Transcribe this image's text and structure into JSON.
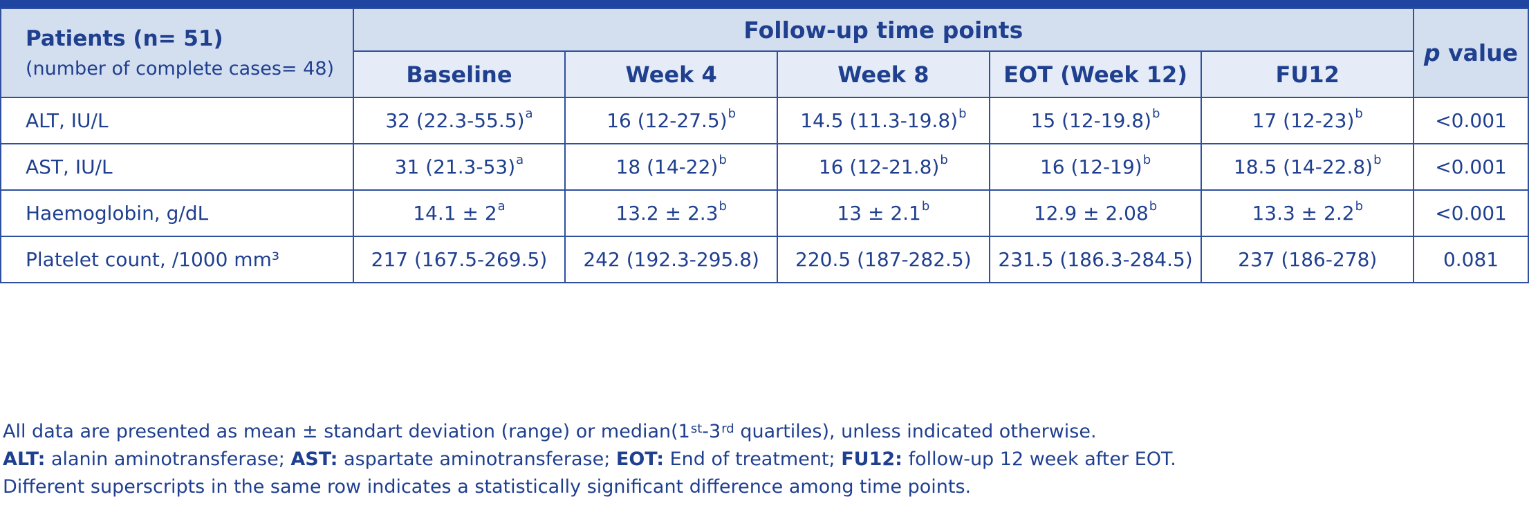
{
  "header": {
    "patients_title": "Patients (n= 51)",
    "patients_sub": "(number of complete cases= 48)",
    "followup": "Follow-up time points",
    "p_italic": "p",
    "p_rest": " value",
    "columns": [
      "Baseline",
      "Week 4",
      "Week 8",
      "EOT (Week 12)",
      "FU12"
    ]
  },
  "rows": [
    {
      "label": "ALT, IU/L",
      "cells": [
        {
          "v": "32 (22.3-55.5)",
          "s": "a"
        },
        {
          "v": "16 (12-27.5)",
          "s": "b"
        },
        {
          "v": "14.5 (11.3-19.8)",
          "s": "b"
        },
        {
          "v": "15 (12-19.8)",
          "s": "b"
        },
        {
          "v": "17 (12-23)",
          "s": "b"
        }
      ],
      "p": "<0.001"
    },
    {
      "label": "AST, IU/L",
      "cells": [
        {
          "v": "31 (21.3-53)",
          "s": "a"
        },
        {
          "v": "18 (14-22)",
          "s": "b"
        },
        {
          "v": "16 (12-21.8)",
          "s": "b"
        },
        {
          "v": "16 (12-19)",
          "s": "b"
        },
        {
          "v": "18.5 (14-22.8)",
          "s": "b"
        }
      ],
      "p": "<0.001"
    },
    {
      "label": "Haemoglobin, g/dL",
      "cells": [
        {
          "v": "14.1 ± 2",
          "s": "a"
        },
        {
          "v": "13.2 ± 2.3",
          "s": "b"
        },
        {
          "v": "13 ± 2.1",
          "s": "b"
        },
        {
          "v": "12.9 ± 2.08",
          "s": "b"
        },
        {
          "v": "13.3 ± 2.2",
          "s": "b"
        }
      ],
      "p": "<0.001"
    },
    {
      "label": "Platelet count, /1000 mm³",
      "cells": [
        {
          "v": "217 (167.5-269.5)",
          "s": ""
        },
        {
          "v": "242 (192.3-295.8)",
          "s": ""
        },
        {
          "v": "220.5 (187-282.5)",
          "s": ""
        },
        {
          "v": "231.5 (186.3-284.5)",
          "s": ""
        },
        {
          "v": "237 (186-278)",
          "s": ""
        }
      ],
      "p": "0.081"
    }
  ],
  "notes": {
    "line1": {
      "a": "All data are presented as mean ± standart deviation (range) or median(1",
      "sup1": "st",
      "b": "-3",
      "sup2": "rd",
      "c": " quartiles), unless indicated otherwise."
    },
    "line2": [
      {
        "term": "ALT:",
        "def": " alanin aminotransferase; "
      },
      {
        "term": "AST:",
        "def": " aspartate aminotransferase; "
      },
      {
        "term": "EOT:",
        "def": " End of  treatment; "
      },
      {
        "term": "FU12:",
        "def": " follow-up 12 week after EOT."
      }
    ],
    "line3": "Different superscripts in the same row indicates a statistically significant difference among time points."
  },
  "colors": {
    "text": "#1f3f8f",
    "header_bg": "#d3deef",
    "subheader_bg": "#e5ecf7",
    "border": "#2f4f9f",
    "top_bar": "#1f45a0"
  }
}
